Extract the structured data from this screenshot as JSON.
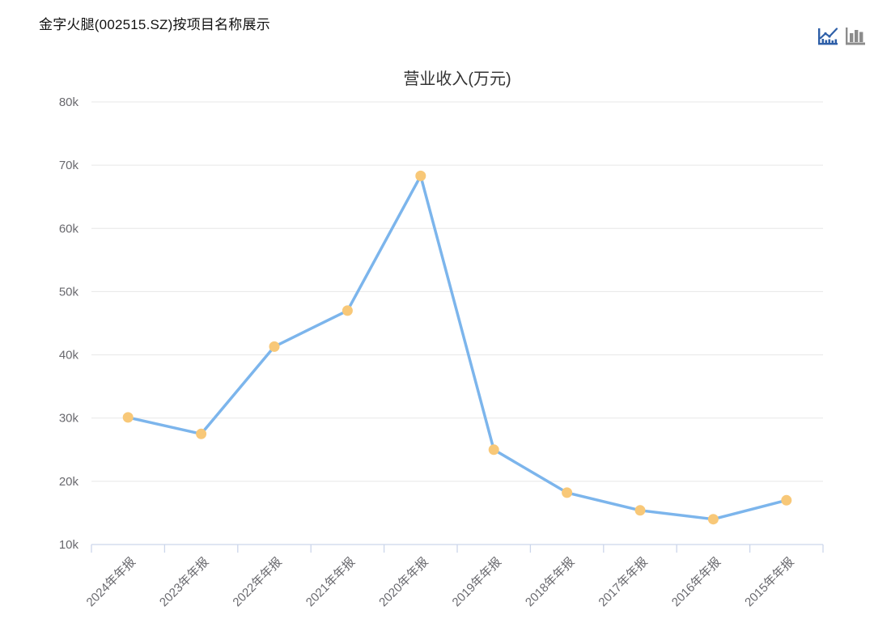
{
  "header": {
    "title": "金字火腿(002515.SZ)按项目名称展示",
    "toolbar": {
      "active_view": "line",
      "line_icon_color": "#2E5FA8",
      "bar_icon_color": "#8C8C8C"
    }
  },
  "chart_data": {
    "type": "line",
    "title": "营业收入(万元)",
    "categories": [
      "2024年年报",
      "2023年年报",
      "2022年年报",
      "2021年年报",
      "2020年年报",
      "2019年年报",
      "2018年年报",
      "2017年年报",
      "2016年年报",
      "2015年年报"
    ],
    "series": [
      {
        "name": "营业收入",
        "values": [
          30100,
          27500,
          41300,
          47000,
          68300,
          25000,
          18200,
          15400,
          14000,
          17000
        ]
      }
    ],
    "unit": "万元",
    "ylim": [
      10000,
      80000
    ],
    "y_tick_step": 10000,
    "y_tick_labels": [
      "10k",
      "20k",
      "30k",
      "40k",
      "50k",
      "60k",
      "70k",
      "80k"
    ],
    "x_label_rotation": -45,
    "grid": true,
    "legend_position": "none",
    "colors": {
      "line": "#7CB5EC",
      "marker": "#F8C878",
      "gridline": "#E7E7E7",
      "axis_line": "#CCD6EB",
      "tick_label": "#69696E",
      "title": "#333333"
    }
  }
}
